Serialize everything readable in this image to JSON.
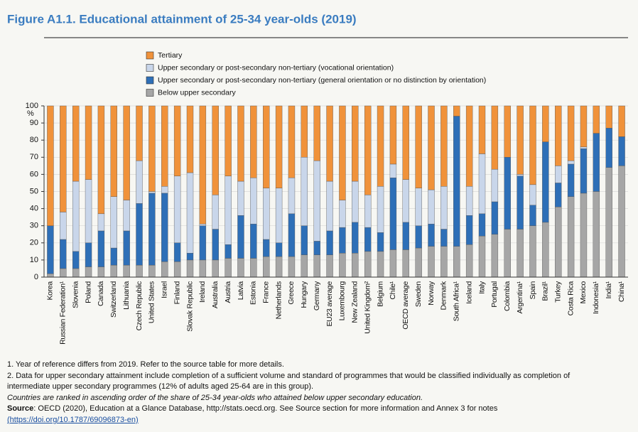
{
  "chart_data": {
    "type": "stacked_bar",
    "title": "Figure A1.1. Educational attainment of 25-34 year-olds (2019)",
    "y_label": "%",
    "categories": [
      "Korea",
      "Russian Federation¹",
      "Slovenia",
      "Poland",
      "Canada",
      "Switzerland",
      "Lithuania",
      "Czech Republic",
      "United States",
      "Israel",
      "Finland",
      "Slovak Republic",
      "Ireland",
      "Australia",
      "Austria",
      "Latvia",
      "Estonia",
      "France",
      "Netherlands",
      "Greece",
      "Hungary",
      "Germany",
      "EU23 average",
      "Luxembourg",
      "New Zealand",
      "United Kingdom²",
      "Belgium",
      "Chile¹",
      "OECD average",
      "Sweden",
      "Norway",
      "Denmark",
      "South Africa¹",
      "Iceland",
      "Italy",
      "Portugal",
      "Colombia",
      "Argentina¹",
      "Spain",
      "Brazil¹",
      "Turkey",
      "Costa Rica",
      "Mexico",
      "Indonesia¹",
      "India¹",
      "China¹"
    ],
    "series": [
      {
        "name": "Below upper secondary",
        "color": "#a6a6a6",
        "values": [
          2,
          5,
          5,
          6,
          6,
          7,
          7,
          7,
          7,
          9,
          9,
          10,
          10,
          10,
          11,
          11,
          11,
          12,
          12,
          12,
          13,
          13,
          13,
          14,
          14,
          15,
          15,
          16,
          16,
          17,
          18,
          18,
          18,
          19,
          24,
          25,
          28,
          28,
          30,
          32,
          41,
          47,
          49,
          50,
          64,
          65
        ]
      },
      {
        "name": "Upper secondary or post-secondary non-tertiary (general orientation or no distinction by orientation)",
        "color": "#2e6fb7",
        "values": [
          28,
          17,
          10,
          14,
          21,
          10,
          20,
          36,
          42,
          40,
          11,
          4,
          20,
          18,
          8,
          25,
          20,
          10,
          8,
          25,
          17,
          8,
          14,
          15,
          18,
          14,
          11,
          42,
          16,
          13,
          13,
          10,
          76,
          17,
          13,
          19,
          42,
          31,
          12,
          47,
          14,
          19,
          26,
          34,
          23,
          17
        ]
      },
      {
        "name": "Upper secondary or post-secondary non-tertiary (vocational orientation)",
        "color": "#c9d6ea",
        "values": [
          0,
          16,
          41,
          37,
          10,
          30,
          18,
          25,
          1,
          4,
          39,
          47,
          1,
          20,
          40,
          20,
          27,
          30,
          32,
          21,
          40,
          47,
          29,
          16,
          24,
          19,
          27,
          8,
          25,
          22,
          20,
          25,
          0,
          17,
          35,
          19,
          0,
          1,
          12,
          0,
          10,
          2,
          1,
          0,
          0,
          0
        ]
      },
      {
        "name": "Tertiary",
        "color": "#f0923a",
        "values": [
          70,
          62,
          44,
          43,
          63,
          53,
          55,
          32,
          50,
          47,
          41,
          39,
          69,
          52,
          41,
          44,
          42,
          48,
          48,
          42,
          30,
          32,
          44,
          55,
          44,
          52,
          47,
          34,
          43,
          48,
          49,
          47,
          6,
          47,
          28,
          37,
          30,
          40,
          46,
          21,
          35,
          32,
          24,
          16,
          13,
          18
        ]
      }
    ],
    "ylim": [
      0,
      100
    ],
    "yticks": [
      0,
      10,
      20,
      30,
      40,
      50,
      60,
      70,
      80,
      90,
      100
    ],
    "grid": true
  },
  "notes": [
    "1. Year of reference differs from 2019. Refer to the source table for more details.",
    "2. Data for upper secondary attainment include completion of a sufficient volume and standard of programmes that would be classified individually as completion of",
    "intermediate upper secondary programmes (12% of adults aged 25-64 are in this group).",
    "Countries are ranked in ascending order of the share of 25-34 year-olds who attained below upper secondary education."
  ],
  "source": {
    "label": "Source",
    "text": ": OECD (2020), Education at a Glance Database, http://stats.oecd.org. See Source section for more information and Annex 3 for notes",
    "link": "(https://doi.org/10.1787/69096873-en)"
  }
}
